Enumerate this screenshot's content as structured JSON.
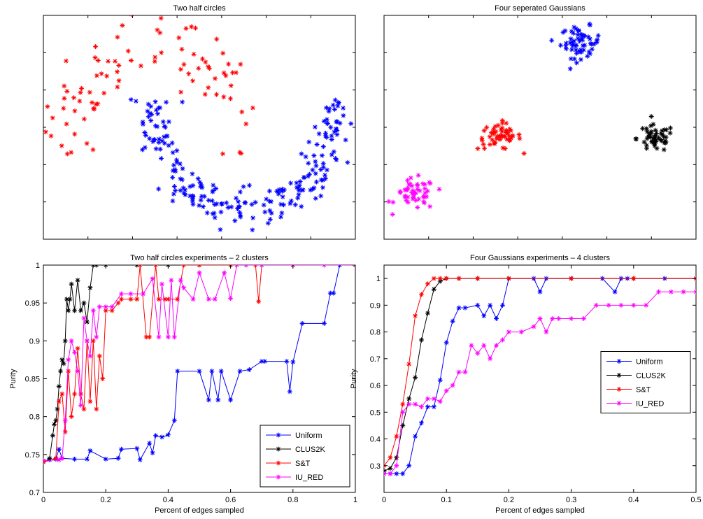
{
  "chart_data": [
    {
      "type": "scatter",
      "title": "Two half circles",
      "xlabel": "",
      "ylabel": "",
      "xlim": [
        -1.2,
        2.2
      ],
      "ylim": [
        -0.75,
        1.25
      ],
      "show_tick_labels": false,
      "series": [
        {
          "color": "#ff0000",
          "marker": "*",
          "shape": "upper-arc",
          "center": [
            0,
            0
          ],
          "radius": 1.0,
          "arc_start_deg": 0,
          "arc_end_deg": 180,
          "noise": 0.15,
          "count": 90
        },
        {
          "color": "#0000ff",
          "marker": "*",
          "shape": "lower-arc",
          "center": [
            1,
            0.5
          ],
          "radius": 1.0,
          "arc_start_deg": 180,
          "arc_end_deg": 360,
          "noise": 0.09,
          "count": 230
        }
      ]
    },
    {
      "type": "scatter",
      "title": "Four seperated Gaussians",
      "xlabel": "",
      "ylabel": "",
      "xlim": [
        0,
        10
      ],
      "ylim": [
        0,
        10
      ],
      "show_tick_labels": false,
      "series": [
        {
          "color": "#0000ff",
          "marker": "*",
          "mean": [
            6.3,
            8.8
          ],
          "std": [
            0.32,
            0.35
          ],
          "count": 60
        },
        {
          "color": "#ff0000",
          "marker": "*",
          "mean": [
            3.7,
            4.6
          ],
          "std": [
            0.35,
            0.3
          ],
          "count": 55
        },
        {
          "color": "#000000",
          "marker": "*",
          "mean": [
            8.7,
            4.5
          ],
          "std": [
            0.3,
            0.3
          ],
          "count": 50
        },
        {
          "color": "#ff00ff",
          "marker": "*",
          "mean": [
            1.0,
            2.0
          ],
          "std": [
            0.32,
            0.35
          ],
          "count": 50
        }
      ]
    },
    {
      "type": "line",
      "title": "Two half circles experiments – 2 clusters",
      "xlabel": "Percent of edges sampled",
      "ylabel": "Purity",
      "xlim": [
        0,
        1
      ],
      "ylim": [
        0.7,
        1
      ],
      "xticks": [
        "0",
        "0.2",
        "0.4",
        "0.6",
        "0.8",
        "1"
      ],
      "xtick_values": [
        0,
        0.2,
        0.4,
        0.6,
        0.8,
        1
      ],
      "yticks": [
        "0.7",
        "0.75",
        "0.8",
        "0.85",
        "0.9",
        "0.95",
        "1"
      ],
      "ytick_values": [
        0.7,
        0.75,
        0.8,
        0.85,
        0.9,
        0.95,
        1
      ],
      "legend_position": "bottom-right",
      "series": [
        {
          "name": "Uniform",
          "color": "#0000ff",
          "x": [
            0,
            0.02,
            0.04,
            0.05,
            0.06,
            0.1,
            0.14,
            0.15,
            0.2,
            0.24,
            0.25,
            0.3,
            0.31,
            0.34,
            0.35,
            0.36,
            0.38,
            0.4,
            0.42,
            0.43,
            0.5,
            0.53,
            0.54,
            0.56,
            0.57,
            0.6,
            0.63,
            0.66,
            0.7,
            0.71,
            0.78,
            0.79,
            0.8,
            0.83,
            0.9,
            0.92,
            0.93,
            0.95,
            1.0
          ],
          "y": [
            0.742,
            0.743,
            0.744,
            0.757,
            0.745,
            0.744,
            0.744,
            0.755,
            0.744,
            0.745,
            0.757,
            0.758,
            0.743,
            0.765,
            0.752,
            0.775,
            0.773,
            0.776,
            0.795,
            0.86,
            0.86,
            0.822,
            0.86,
            0.822,
            0.86,
            0.822,
            0.86,
            0.862,
            0.873,
            0.873,
            0.873,
            0.833,
            0.872,
            0.923,
            0.923,
            0.963,
            0.963,
            1.0,
            1.0
          ]
        },
        {
          "name": "CLUS2K",
          "color": "#000000",
          "x": [
            0,
            0.02,
            0.03,
            0.035,
            0.04,
            0.045,
            0.05,
            0.055,
            0.06,
            0.065,
            0.07,
            0.075,
            0.08,
            0.085,
            0.09,
            0.1,
            0.11,
            0.12,
            0.13,
            0.14,
            0.15,
            0.16,
            0.17,
            0.2,
            0.3,
            0.4,
            0.5,
            0.6,
            0.8,
            1.0
          ],
          "y": [
            0.74,
            0.745,
            0.775,
            0.79,
            0.795,
            0.81,
            0.84,
            0.86,
            0.875,
            0.87,
            0.9,
            0.955,
            0.94,
            0.955,
            0.975,
            0.94,
            0.98,
            0.94,
            0.95,
            0.925,
            0.97,
            1.0,
            1.0,
            1.0,
            1.0,
            1.0,
            1.0,
            1.0,
            1.0,
            1.0
          ]
        },
        {
          "name": "S&T",
          "color": "#ff0000",
          "x": [
            0,
            0.04,
            0.05,
            0.06,
            0.07,
            0.08,
            0.09,
            0.1,
            0.11,
            0.12,
            0.13,
            0.14,
            0.15,
            0.16,
            0.17,
            0.18,
            0.19,
            0.2,
            0.22,
            0.24,
            0.25,
            0.28,
            0.3,
            0.31,
            0.33,
            0.34,
            0.36,
            0.37,
            0.39,
            0.4,
            0.43,
            0.45,
            0.5,
            0.6,
            0.68,
            0.69,
            0.7,
            0.8,
            1.0
          ],
          "y": [
            0.74,
            0.745,
            0.82,
            0.83,
            0.78,
            0.86,
            0.8,
            0.83,
            0.89,
            0.83,
            0.81,
            0.9,
            0.82,
            0.9,
            0.81,
            0.88,
            0.85,
            0.94,
            0.94,
            0.95,
            0.955,
            0.955,
            0.955,
            1.0,
            0.905,
            0.905,
            1.0,
            0.955,
            0.955,
            0.955,
            0.955,
            1.0,
            1.0,
            1.0,
            1.0,
            0.952,
            1.0,
            1.0,
            1.0
          ]
        },
        {
          "name": "IU_RED",
          "color": "#ff00ff",
          "x": [
            0,
            0.05,
            0.06,
            0.07,
            0.08,
            0.09,
            0.1,
            0.11,
            0.12,
            0.13,
            0.14,
            0.15,
            0.16,
            0.17,
            0.18,
            0.2,
            0.22,
            0.25,
            0.28,
            0.32,
            0.35,
            0.37,
            0.38,
            0.4,
            0.41,
            0.42,
            0.44,
            0.45,
            0.48,
            0.5,
            0.53,
            0.55,
            0.58,
            0.6,
            0.62,
            0.65,
            0.7,
            0.8,
            0.9,
            1.0
          ],
          "y": [
            0.742,
            0.743,
            0.745,
            0.795,
            0.875,
            0.9,
            0.885,
            0.86,
            0.815,
            0.93,
            0.9,
            0.88,
            0.94,
            0.905,
            0.945,
            0.945,
            0.945,
            0.962,
            0.962,
            0.962,
            0.982,
            0.905,
            0.975,
            0.905,
            0.98,
            0.905,
            0.98,
            0.97,
            0.955,
            0.99,
            0.955,
            0.955,
            0.99,
            0.956,
            1.0,
            1.0,
            1.0,
            1.0,
            1.0,
            1.0
          ]
        }
      ]
    },
    {
      "type": "line",
      "title": "Four Gaussians experiments – 4 clusters",
      "xlabel": "Percent of edges sampled",
      "ylabel": "Purity",
      "xlim": [
        0,
        0.5
      ],
      "ylim": [
        0.2,
        1.05
      ],
      "xticks": [
        "0",
        "0.1",
        "0.2",
        "0.3",
        "0.4",
        "0.5"
      ],
      "xtick_values": [
        0,
        0.1,
        0.2,
        0.3,
        0.4,
        0.5
      ],
      "yticks": [
        "0.3",
        "0.4",
        "0.5",
        "0.6",
        "0.7",
        "0.8",
        "0.9",
        "1"
      ],
      "ytick_values": [
        0.3,
        0.4,
        0.5,
        0.6,
        0.7,
        0.8,
        0.9,
        1
      ],
      "legend_position": "middle-right",
      "series": [
        {
          "name": "Uniform",
          "color": "#0000ff",
          "x": [
            0,
            0.01,
            0.02,
            0.03,
            0.04,
            0.05,
            0.06,
            0.07,
            0.08,
            0.09,
            0.1,
            0.11,
            0.12,
            0.13,
            0.15,
            0.16,
            0.17,
            0.18,
            0.19,
            0.2,
            0.24,
            0.25,
            0.26,
            0.3,
            0.35,
            0.37,
            0.38,
            0.39,
            0.45,
            0.5
          ],
          "y": [
            0.27,
            0.27,
            0.27,
            0.27,
            0.3,
            0.41,
            0.46,
            0.52,
            0.52,
            0.62,
            0.76,
            0.84,
            0.89,
            0.89,
            0.9,
            0.86,
            0.9,
            0.85,
            0.9,
            1.0,
            1.0,
            0.95,
            1.0,
            1.0,
            1.0,
            0.95,
            1.0,
            1.0,
            1.0,
            1.0
          ]
        },
        {
          "name": "CLUS2K",
          "color": "#000000",
          "x": [
            0,
            0.01,
            0.02,
            0.03,
            0.04,
            0.05,
            0.06,
            0.07,
            0.08,
            0.09,
            0.1,
            0.12,
            0.15,
            0.2,
            0.3,
            0.4,
            0.5
          ],
          "y": [
            0.28,
            0.29,
            0.33,
            0.45,
            0.55,
            0.63,
            0.77,
            0.87,
            0.96,
            0.99,
            1.0,
            1.0,
            1.0,
            1.0,
            1.0,
            1.0,
            1.0
          ]
        },
        {
          "name": "S&T",
          "color": "#ff0000",
          "x": [
            0,
            0.01,
            0.02,
            0.03,
            0.04,
            0.05,
            0.06,
            0.07,
            0.08,
            0.09,
            0.1,
            0.12,
            0.15,
            0.2,
            0.3,
            0.4,
            0.5
          ],
          "y": [
            0.3,
            0.33,
            0.41,
            0.53,
            0.68,
            0.86,
            0.94,
            0.98,
            1.0,
            1.0,
            1.0,
            1.0,
            1.0,
            1.0,
            1.0,
            1.0,
            1.0
          ]
        },
        {
          "name": "IU_RED",
          "color": "#ff00ff",
          "x": [
            0,
            0.01,
            0.02,
            0.03,
            0.04,
            0.05,
            0.06,
            0.07,
            0.08,
            0.09,
            0.1,
            0.11,
            0.12,
            0.13,
            0.14,
            0.15,
            0.16,
            0.17,
            0.18,
            0.19,
            0.2,
            0.22,
            0.24,
            0.25,
            0.26,
            0.27,
            0.28,
            0.3,
            0.32,
            0.34,
            0.36,
            0.38,
            0.4,
            0.42,
            0.44,
            0.46,
            0.48,
            0.5
          ],
          "y": [
            0.27,
            0.27,
            0.3,
            0.5,
            0.53,
            0.53,
            0.52,
            0.55,
            0.55,
            0.54,
            0.58,
            0.6,
            0.65,
            0.65,
            0.75,
            0.72,
            0.75,
            0.7,
            0.75,
            0.77,
            0.8,
            0.8,
            0.82,
            0.85,
            0.8,
            0.85,
            0.85,
            0.85,
            0.85,
            0.9,
            0.9,
            0.9,
            0.9,
            0.9,
            0.95,
            0.95,
            0.95,
            0.95
          ]
        }
      ]
    }
  ]
}
